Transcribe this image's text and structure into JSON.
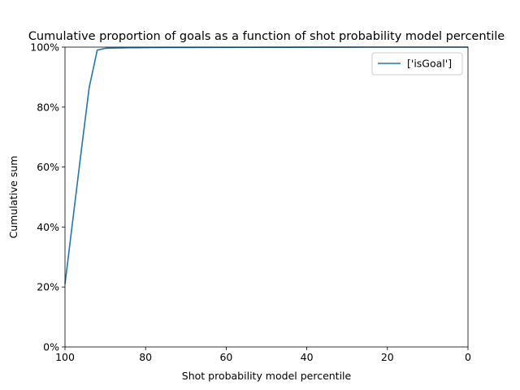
{
  "chart_data": {
    "type": "line",
    "title": "Cumulative proportion of goals as a function of shot probability model percentile",
    "xlabel": "Shot probability model percentile",
    "ylabel": "Cumulative sum",
    "xlim": [
      100,
      0
    ],
    "ylim": [
      0,
      100
    ],
    "x_inverted": true,
    "xticks": [
      100,
      80,
      60,
      40,
      20,
      0
    ],
    "xtick_labels": [
      "100",
      "80",
      "60",
      "40",
      "20",
      "0"
    ],
    "yticks": [
      0,
      20,
      40,
      60,
      80,
      100
    ],
    "ytick_labels": [
      "0%",
      "20%",
      "40%",
      "60%",
      "80%",
      "100%"
    ],
    "grid": false,
    "legend_position": "upper-right",
    "series": [
      {
        "name": "['isGoal']",
        "color": "#1f77b4",
        "x": [
          100,
          98,
          96,
          94,
          92,
          90,
          88,
          86,
          84,
          82,
          80,
          75,
          70,
          65,
          60,
          55,
          50,
          45,
          40,
          35,
          30,
          25,
          20,
          15,
          10,
          5,
          0
        ],
        "y": [
          21,
          43,
          65,
          86.5,
          99,
          99.6,
          99.7,
          99.75,
          99.8,
          99.82,
          99.85,
          99.87,
          99.89,
          99.9,
          99.92,
          99.93,
          99.95,
          99.96,
          99.97,
          99.98,
          99.99,
          100,
          100,
          100,
          100,
          100,
          100
        ]
      }
    ]
  }
}
